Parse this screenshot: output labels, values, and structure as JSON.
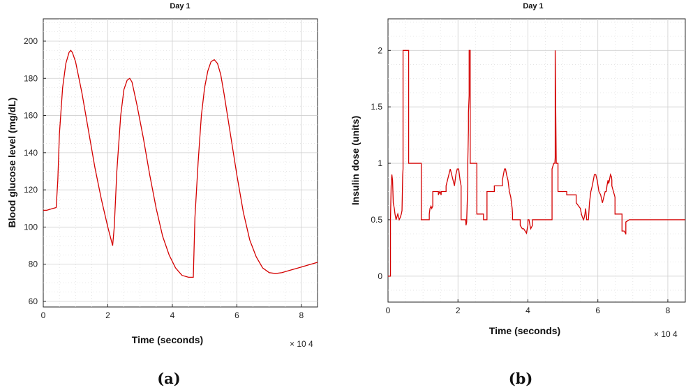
{
  "chart_data": [
    {
      "type": "line",
      "title": "Day 1",
      "xlabel": "Time (seconds)",
      "ylabel": "Blood glucose level (mg/dL)",
      "x_multiplier": "× 10 4",
      "caption": "(a)",
      "xlim": [
        0,
        85000
      ],
      "ylim": [
        57,
        212
      ],
      "grid": true,
      "line_color": "#d40000",
      "xticks": [
        0,
        20000,
        40000,
        60000,
        80000
      ],
      "xtick_labels": [
        "0",
        "2",
        "4",
        "6",
        "8"
      ],
      "yticks": [
        60,
        80,
        100,
        120,
        140,
        160,
        180,
        200
      ],
      "ytick_labels": [
        "60",
        "80",
        "100",
        "120",
        "140",
        "160",
        "180",
        "200"
      ],
      "series": [
        {
          "x": [
            0,
            1000,
            2000,
            3000,
            4000,
            4500,
            5000,
            6000,
            7000,
            8000,
            8500,
            9000,
            10000,
            12000,
            14000,
            16000,
            18000,
            20000,
            21500,
            22000,
            22800,
            24000,
            25000,
            26000,
            26800,
            27500,
            29000,
            31000,
            33000,
            35000,
            37000,
            39000,
            41000,
            43000,
            45000,
            46500,
            47000,
            48000,
            49000,
            50000,
            51000,
            52000,
            53000,
            54000,
            55000,
            56000,
            58000,
            60000,
            62000,
            64000,
            66000,
            68000,
            70000,
            72000,
            74000,
            76000,
            78000,
            80000,
            82000,
            85000
          ],
          "y": [
            109,
            109,
            109.5,
            110,
            110.5,
            125,
            150,
            175,
            188,
            194,
            195,
            194,
            189,
            172,
            152,
            132,
            115,
            100,
            90,
            100,
            130,
            160,
            174,
            179,
            180,
            178,
            166,
            148,
            128,
            110,
            95,
            85,
            78,
            74,
            73,
            73,
            105,
            135,
            160,
            175,
            184,
            189,
            190,
            188,
            182,
            172,
            150,
            128,
            108,
            93,
            84,
            78,
            75.5,
            75,
            75.5,
            76.5,
            77.5,
            78.5,
            79.5,
            81
          ]
        }
      ]
    },
    {
      "type": "line",
      "title": "Day 1",
      "xlabel": "Time (seconds)",
      "ylabel": "Insulin dose (units)",
      "x_multiplier": "× 10 4",
      "caption": "(b)",
      "xlim": [
        0,
        85000
      ],
      "ylim": [
        -0.23,
        2.28
      ],
      "grid": true,
      "line_color": "#d40000",
      "xticks": [
        0,
        20000,
        40000,
        60000,
        80000
      ],
      "xtick_labels": [
        "0",
        "2",
        "4",
        "6",
        "8"
      ],
      "yticks": [
        0,
        0.5,
        1,
        1.5,
        2
      ],
      "ytick_labels": [
        "0",
        "0.5",
        "1",
        "1.5",
        "2"
      ],
      "series": [
        {
          "x": [
            0,
            700,
            700,
            900,
            1100,
            1300,
            1500,
            1800,
            2000,
            2300,
            2500,
            2800,
            3200,
            3500,
            3800,
            4000,
            4200,
            4300,
            4300,
            5900,
            5900,
            9500,
            9500,
            11800,
            11800,
            12000,
            12300,
            12500,
            12800,
            12800,
            14400,
            14400,
            14800,
            15200,
            15200,
            16600,
            16600,
            17000,
            17400,
            17800,
            18200,
            18600,
            19000,
            19400,
            19800,
            20200,
            20600,
            20900,
            20900,
            22200,
            22300,
            22500,
            22500,
            22800,
            22800,
            23000,
            23000,
            23200,
            23200,
            23500,
            23500,
            23700,
            23700,
            25400,
            25400,
            27300,
            27300,
            28300,
            28300,
            30400,
            30400,
            32700,
            32700,
            33000,
            33300,
            33600,
            33900,
            34300,
            34700,
            35100,
            35300,
            35500,
            35600,
            35600,
            37800,
            37800,
            38400,
            38800,
            39200,
            39600,
            39800,
            40000,
            40000,
            40300,
            40600,
            40800,
            41300,
            41300,
            43200,
            43200,
            44400,
            44400,
            46900,
            46900,
            47400,
            47700,
            47800,
            47800,
            48100,
            48100,
            48300,
            48400,
            48600,
            48600,
            51100,
            51100,
            53800,
            53800,
            55000,
            55300,
            55600,
            55900,
            56100,
            56300,
            56500,
            56800,
            56900,
            57300,
            57600,
            58000,
            58400,
            58700,
            59000,
            59400,
            59800,
            60300,
            60800,
            61300,
            61700,
            62100,
            62400,
            62600,
            62900,
            63100,
            63300,
            63600,
            63900,
            64000,
            64000,
            64900,
            64900,
            66900,
            66900,
            67500,
            67900,
            68000,
            68000,
            69000,
            69200,
            69500,
            69800,
            69800,
            85000
          ],
          "y": [
            0,
            0,
            0.5,
            0.8,
            0.9,
            0.85,
            0.65,
            0.6,
            0.55,
            0.5,
            0.52,
            0.55,
            0.5,
            0.52,
            0.55,
            0.58,
            0.9,
            0.95,
            2,
            2,
            1,
            1,
            0.5,
            0.5,
            0.55,
            0.6,
            0.62,
            0.6,
            0.62,
            0.75,
            0.75,
            0.72,
            0.75,
            0.72,
            0.75,
            0.75,
            0.8,
            0.85,
            0.9,
            0.95,
            0.9,
            0.85,
            0.8,
            0.9,
            0.95,
            0.95,
            0.85,
            0.8,
            0.5,
            0.5,
            0.45,
            0.48,
            0.5,
            0.8,
            1.0,
            1.3,
            1.45,
            1.6,
            2,
            2,
            1.0,
            1.0,
            1.0,
            1.0,
            0.55,
            0.55,
            0.5,
            0.5,
            0.75,
            0.75,
            0.8,
            0.8,
            0.85,
            0.9,
            0.95,
            0.95,
            0.9,
            0.85,
            0.75,
            0.7,
            0.65,
            0.6,
            0.55,
            0.5,
            0.5,
            0.45,
            0.42,
            0.42,
            0.4,
            0.38,
            0.42,
            0.45,
            0.5,
            0.5,
            0.45,
            0.42,
            0.45,
            0.5,
            0.5,
            0.5,
            0.5,
            0.5,
            0.5,
            0.95,
            1.0,
            1.0,
            1.05,
            2,
            1.0,
            1.0,
            1.0,
            1.0,
            1.0,
            0.75,
            0.75,
            0.72,
            0.72,
            0.65,
            0.6,
            0.55,
            0.52,
            0.5,
            0.52,
            0.55,
            0.6,
            0.5,
            0.5,
            0.5,
            0.65,
            0.75,
            0.8,
            0.85,
            0.9,
            0.9,
            0.85,
            0.75,
            0.72,
            0.65,
            0.7,
            0.75,
            0.75,
            0.8,
            0.85,
            0.82,
            0.85,
            0.9,
            0.88,
            0.85,
            0.8,
            0.7,
            0.55,
            0.55,
            0.4,
            0.4,
            0.38,
            0.37,
            0.48,
            0.5,
            0.5,
            0.5,
            0.5,
            0.5,
            0.5
          ]
        }
      ]
    }
  ]
}
